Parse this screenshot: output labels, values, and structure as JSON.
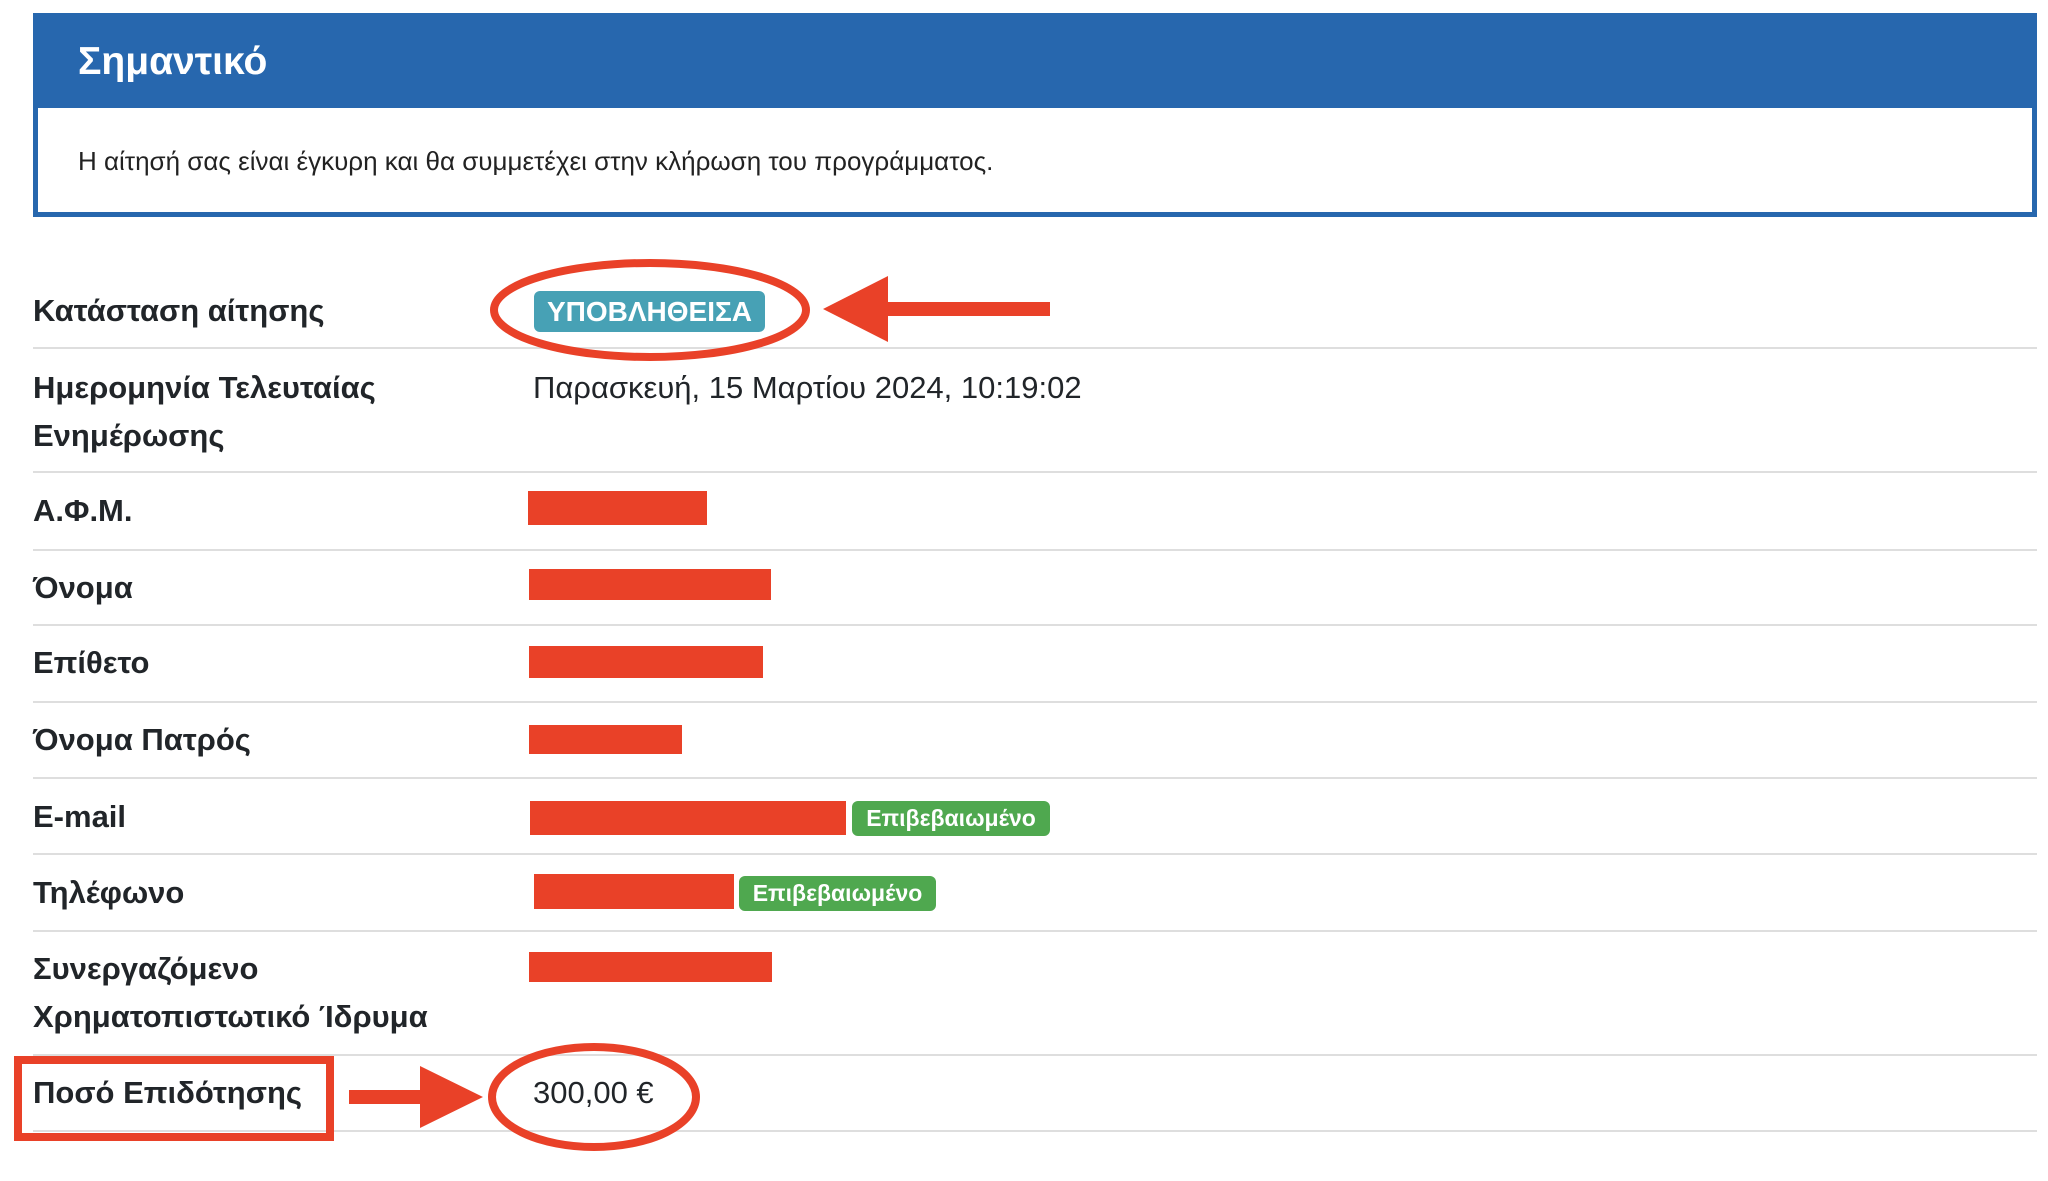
{
  "notice": {
    "title": "Σημαντικό",
    "message": "Η αίτησή σας είναι έγκυρη και θα συμμετέχει στην κλήρωση του προγράμματος."
  },
  "details": {
    "status_label": "Κατάσταση αίτησης",
    "status_value": "ΥΠΟΒΛΗΘΕΙΣΑ",
    "updated_label_1": "Ημερομηνία Τελευταίας",
    "updated_label_2": "Ενημέρωσης",
    "updated_value": "Παρασκευή, 15 Μαρτίου 2024, 10:19:02",
    "afm_label": "Α.Φ.Μ.",
    "name_label": "Όνομα",
    "surname_label": "Επίθετο",
    "father_label": "Όνομα Πατρός",
    "email_label": "E-mail",
    "email_badge": "Επιβεβαιωμένο",
    "phone_label": "Τηλέφωνο",
    "phone_badge": "Επιβεβαιωμένο",
    "bank_label_1": "Συνεργαζόμενο",
    "bank_label_2": "Χρηματοπιστωτικό Ίδρυμα",
    "amount_label": "Ποσό Επιδότησης",
    "amount_value": "300,00 €"
  },
  "colors": {
    "primary": "#2767ae",
    "info_badge": "#47a1b5",
    "success_badge": "#4fa84f",
    "annotation_red": "#e94128"
  }
}
